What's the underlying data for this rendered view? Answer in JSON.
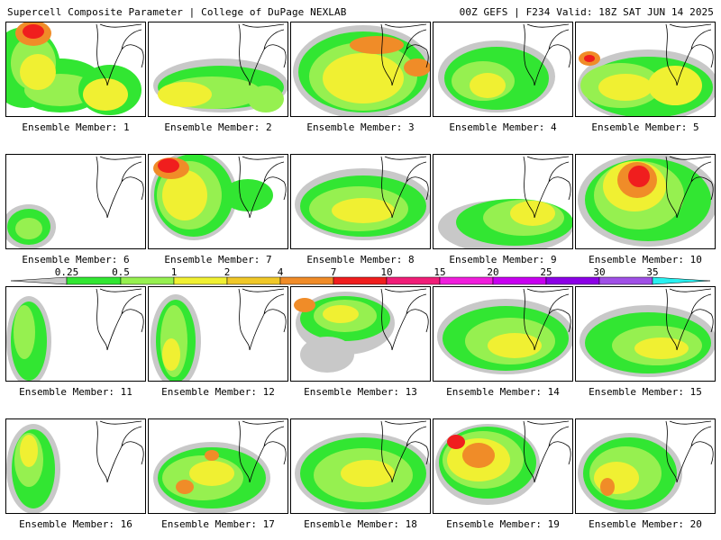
{
  "header": {
    "left_title": "Supercell Composite Parameter | College of DuPage NEXLAB",
    "right_title": "00Z GEFS | F234 Valid: 18Z SAT JUN 14 2025"
  },
  "panels": [
    {
      "label": "Ensemble Member: 1"
    },
    {
      "label": "Ensemble Member: 2"
    },
    {
      "label": "Ensemble Member: 3"
    },
    {
      "label": "Ensemble Member: 4"
    },
    {
      "label": "Ensemble Member: 5"
    },
    {
      "label": "Ensemble Member: 6"
    },
    {
      "label": "Ensemble Member: 7"
    },
    {
      "label": "Ensemble Member: 8"
    },
    {
      "label": "Ensemble Member: 9"
    },
    {
      "label": "Ensemble Member: 10"
    },
    {
      "label": "Ensemble Member: 11"
    },
    {
      "label": "Ensemble Member: 12"
    },
    {
      "label": "Ensemble Member: 13"
    },
    {
      "label": "Ensemble Member: 14"
    },
    {
      "label": "Ensemble Member: 15"
    },
    {
      "label": "Ensemble Member: 16"
    },
    {
      "label": "Ensemble Member: 17"
    },
    {
      "label": "Ensemble Member: 18"
    },
    {
      "label": "Ensemble Member: 19"
    },
    {
      "label": "Ensemble Member: 20"
    }
  ],
  "colorbar": {
    "levels": [
      "0.25",
      "0.5",
      "1",
      "2",
      "4",
      "7",
      "10",
      "15",
      "20",
      "25",
      "30",
      "35"
    ],
    "colors": [
      "#c8c8c8",
      "#32e632",
      "#96f050",
      "#f0f032",
      "#f0c828",
      "#f08c28",
      "#f01e1e",
      "#f01e78",
      "#f01edc",
      "#c800f0",
      "#8c00e6",
      "#a050e6",
      "#28f0f0"
    ]
  }
}
